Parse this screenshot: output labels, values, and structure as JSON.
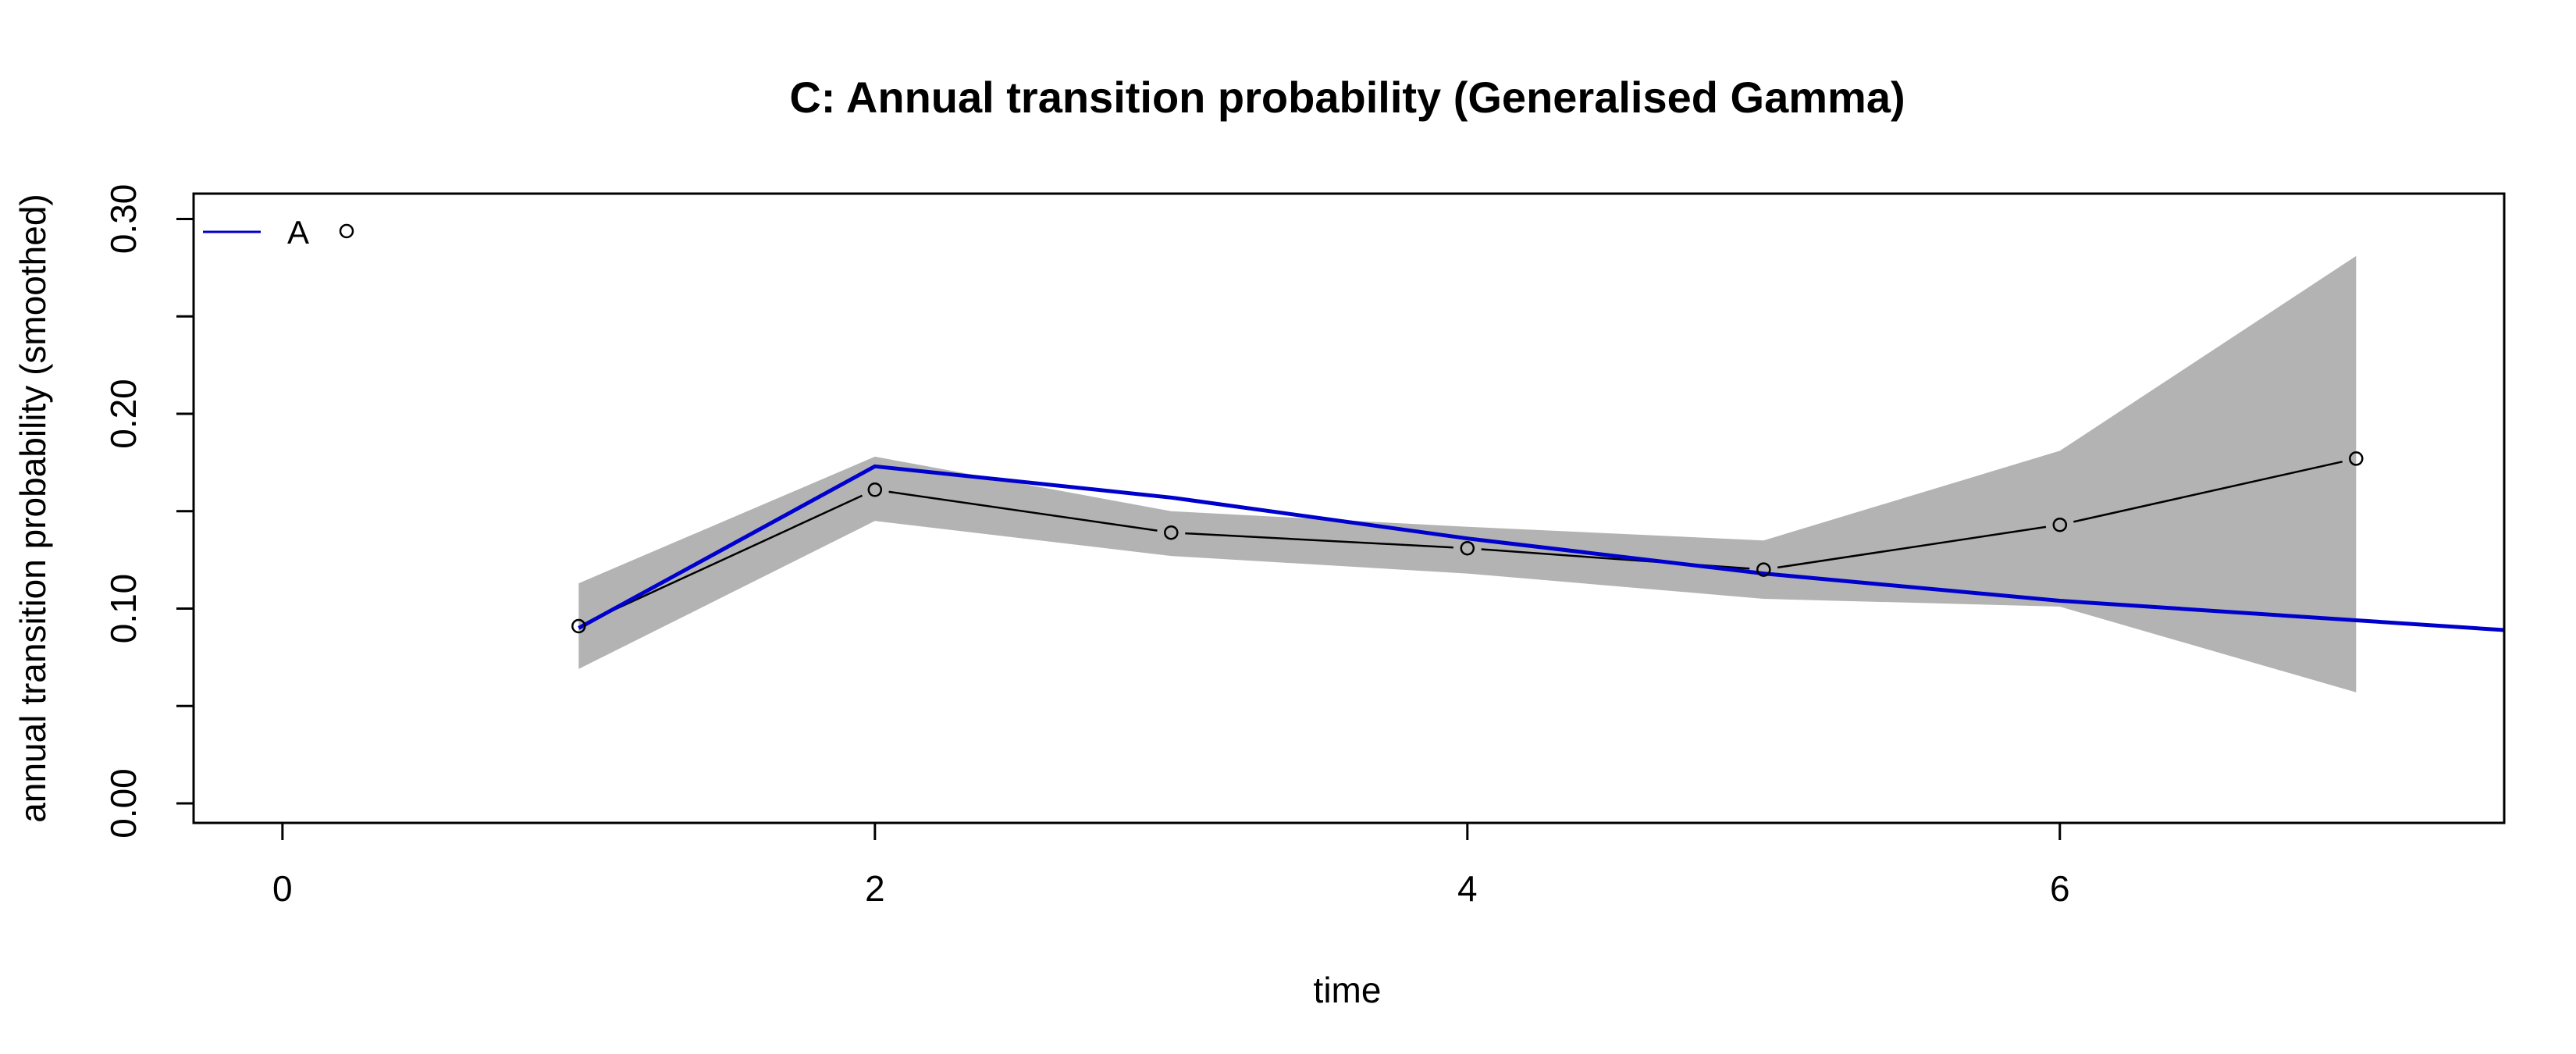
{
  "chart_data": {
    "type": "line",
    "title": "C: Annual transition probability (Generalised Gamma)",
    "xlabel": "time",
    "ylabel": "annual transition probability (smoothed)",
    "xlim": [
      -0.3,
      7.5
    ],
    "ylim": [
      -0.01,
      0.313
    ],
    "x_ticks": [
      0,
      2,
      4,
      6
    ],
    "y_ticks": [
      0.0,
      0.05,
      0.1,
      0.15,
      0.2,
      0.25,
      0.3
    ],
    "y_tick_labels": [
      {
        "value": 0.0,
        "label": "0.00"
      },
      {
        "value": 0.1,
        "label": "0.10"
      },
      {
        "value": 0.2,
        "label": "0.20"
      },
      {
        "value": 0.3,
        "label": "0.30"
      }
    ],
    "grid": false,
    "legend": {
      "position": "top-left",
      "entries": [
        {
          "label": "A",
          "color": "#0000CD"
        }
      ]
    },
    "series": [
      {
        "name": "A",
        "kind": "line",
        "color": "#0000CD",
        "x": [
          1,
          2,
          3,
          4,
          5,
          6,
          7,
          7.5
        ],
        "y": [
          0.09,
          0.173,
          0.157,
          0.136,
          0.118,
          0.104,
          0.094,
          0.089
        ]
      },
      {
        "kind": "points",
        "color": "#000000",
        "x": [
          1,
          2,
          3,
          4,
          5,
          6,
          7
        ],
        "y": [
          0.091,
          0.161,
          0.139,
          0.131,
          0.12,
          0.143,
          0.177
        ]
      },
      {
        "kind": "band",
        "color": "#B3B3B3",
        "x": [
          1,
          2,
          3,
          4,
          5,
          6,
          7
        ],
        "lower": [
          0.069,
          0.145,
          0.127,
          0.118,
          0.105,
          0.101,
          0.057
        ],
        "upper": [
          0.113,
          0.178,
          0.15,
          0.142,
          0.135,
          0.181,
          0.281
        ]
      }
    ]
  }
}
